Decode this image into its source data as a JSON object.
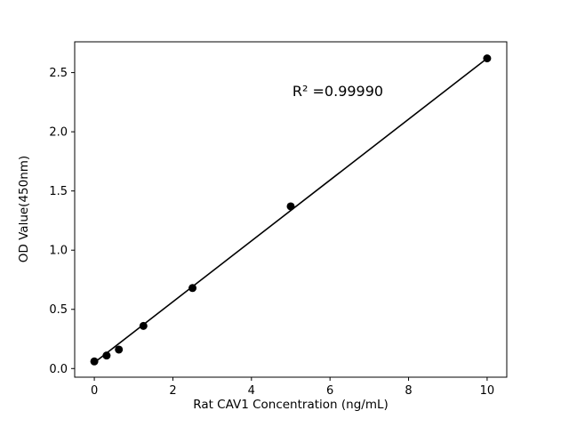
{
  "chart_data": {
    "type": "scatter",
    "title": "",
    "xlabel": "Rat CAV1 Concentration (ng/mL)",
    "ylabel": "OD Value(450nm)",
    "annotation": "R² =0.99990",
    "legend": null,
    "grid": false,
    "xlim": [
      -0.5,
      10.5
    ],
    "ylim": [
      -0.073,
      2.76
    ],
    "xticks": [
      0,
      2,
      4,
      6,
      8,
      10
    ],
    "yticks": [
      0.0,
      0.5,
      1.0,
      1.5,
      2.0,
      2.5
    ],
    "points": [
      {
        "x": 0,
        "y": 0.06
      },
      {
        "x": 0.3125,
        "y": 0.11
      },
      {
        "x": 0.625,
        "y": 0.16
      },
      {
        "x": 1.25,
        "y": 0.36
      },
      {
        "x": 2.5,
        "y": 0.68
      },
      {
        "x": 5,
        "y": 1.37
      },
      {
        "x": 10,
        "y": 2.62
      }
    ],
    "fit_line": {
      "x1": 0,
      "y1": 0.05,
      "x2": 10,
      "y2": 2.62
    },
    "colors": {
      "marker": "#000000",
      "line": "#000000",
      "spine": "#000000",
      "background": "#ffffff"
    }
  }
}
